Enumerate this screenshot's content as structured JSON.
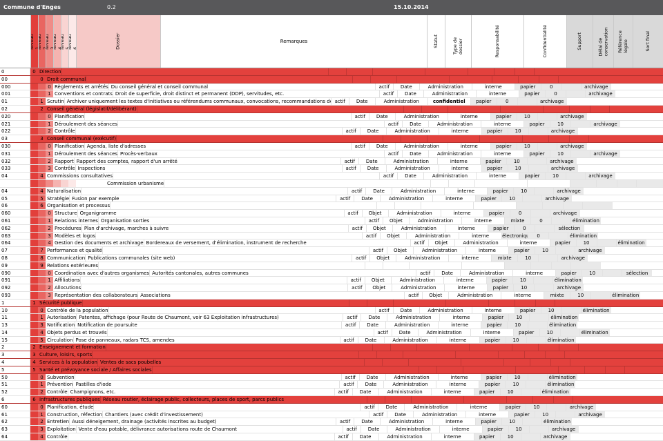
{
  "titlebar": {
    "title": "Commune d'Enges",
    "version": "0.2",
    "date": "15.10.2014"
  },
  "table": {
    "headers": {
      "niveaux": [
        "Niveau 1",
        "Niveau 2",
        "Niveau 3",
        "Niveau 4",
        "Niveau 5",
        "Niveau 6"
      ],
      "dossier": "Dossier",
      "remarques": "Remarques",
      "statut": "Statut",
      "type": "Type de dossier",
      "resp": "Responsabilité",
      "conf": "Confidentialité",
      "support": "Support",
      "delai": "Délai de conservation",
      "ref": "Référence légale",
      "sort": "Sort final"
    },
    "colors": {
      "accent_red": "#e3413d",
      "niveau_gradient": [
        "#e23f3b",
        "#e96561",
        "#ef8c88",
        "#f5b3b0",
        "#f9d4d2",
        "#fce9e8"
      ],
      "header_gray": "#d9d9d9",
      "data_gray": "#e9e9e9",
      "titlebar_gray": "#58585a"
    },
    "rows": [
      {
        "code": "0",
        "kind": "s1",
        "num": "0",
        "label": "Direction",
        "remark": ""
      },
      {
        "code": "00",
        "kind": "s2",
        "num": "0",
        "label": "Droit communal",
        "remark": ""
      },
      {
        "code": "000",
        "kind": "d3",
        "num": "0",
        "label": "Règlements et arrêtés",
        "remark": "Du conseil général et conseil communal",
        "values": {
          "statut": "actif",
          "type": "Date",
          "resp": "Administration",
          "conf": "interne",
          "support": "papier",
          "delai": "0",
          "ref": "",
          "sort": "archivage"
        }
      },
      {
        "code": "001",
        "kind": "d3",
        "num": "1",
        "label": "Conventions et contrats",
        "remark": "Droit de superficie, droit distinct et permanent (DDP), servitudes, etc.",
        "values": {
          "statut": "actif",
          "type": "Date",
          "resp": "Administration",
          "conf": "interne",
          "support": "papier",
          "delai": "0",
          "ref": "",
          "sort": "archivage"
        }
      },
      {
        "code": "01",
        "kind": "d2",
        "num": "1",
        "label": "Scrutin",
        "remark": "Archiver uniquement les textes d'initiatives ou référendums communaux, convocations, recommandations de vote, valida",
        "values": {
          "statut": "actif",
          "type": "Date",
          "resp": "Administration",
          "conf": "confidentiel",
          "support": "papier",
          "delai": "0",
          "ref": "",
          "sort": "archivage"
        }
      },
      {
        "code": "02",
        "kind": "s2",
        "num": "2",
        "label": "Conseil général (législatif/délibérant)",
        "remark": ""
      },
      {
        "code": "020",
        "kind": "d3",
        "num": "0",
        "label": "Planification",
        "remark": "",
        "values": {
          "statut": "actif",
          "type": "Date",
          "resp": "Administration",
          "conf": "interne",
          "support": "papier",
          "delai": "10",
          "ref": "",
          "sort": "archivage"
        }
      },
      {
        "code": "021",
        "kind": "d3",
        "num": "1",
        "label": "Déroulement des séances",
        "remark": "",
        "values": {
          "statut": "actif",
          "type": "Date",
          "resp": "Administration",
          "conf": "interne",
          "support": "papier",
          "delai": "10",
          "ref": "",
          "sort": "archivage"
        }
      },
      {
        "code": "022",
        "kind": "d3",
        "num": "2",
        "label": "Contrôle",
        "remark": "",
        "values": {
          "statut": "actif",
          "type": "Date",
          "resp": "Administration",
          "conf": "interne",
          "support": "papier",
          "delai": "10",
          "ref": "",
          "sort": "archivage"
        }
      },
      {
        "code": "03",
        "kind": "s2",
        "num": "3",
        "label": "Conseil communal (exécutif)",
        "remark": ""
      },
      {
        "code": "030",
        "kind": "d3",
        "num": "0",
        "label": "Planification",
        "remark": "Agenda, liste d'adresses",
        "values": {
          "statut": "actif",
          "type": "Date",
          "resp": "Administration",
          "conf": "interne",
          "support": "papier",
          "delai": "10",
          "ref": "",
          "sort": "archivage"
        }
      },
      {
        "code": "031",
        "kind": "d3",
        "num": "1",
        "label": "Déroulement des séances",
        "remark": "Procès-verbaux",
        "values": {
          "statut": "actif",
          "type": "Date",
          "resp": "Administration",
          "conf": "interne",
          "support": "papier",
          "delai": "10",
          "ref": "",
          "sort": "archivage"
        }
      },
      {
        "code": "032",
        "kind": "d3",
        "num": "2",
        "label": "Rapport",
        "remark": "Rapport des comptes, rapport d'un arrêté",
        "values": {
          "statut": "actif",
          "type": "Date",
          "resp": "Administration",
          "conf": "interne",
          "support": "papier",
          "delai": "10",
          "ref": "",
          "sort": "archivage"
        }
      },
      {
        "code": "033",
        "kind": "d3",
        "num": "3",
        "label": "Contrôle",
        "remark": "Inspections",
        "values": {
          "statut": "actif",
          "type": "Date",
          "resp": "Administration",
          "conf": "interne",
          "support": "papier",
          "delai": "10",
          "ref": "",
          "sort": "archivage"
        }
      },
      {
        "code": "04",
        "kind": "d2",
        "num": "4",
        "label": "Commissions consultatives",
        "remark": "",
        "values": {
          "statut": "actif",
          "type": "Date",
          "resp": "Administration",
          "conf": "interne",
          "support": "papier",
          "delai": "10",
          "ref": "",
          "sort": "archivage"
        }
      },
      {
        "code": "",
        "kind": "ex",
        "num": null,
        "label": "Commission urbanisme",
        "remark": ""
      },
      {
        "code": "04",
        "kind": "d2",
        "num": "4",
        "label": "Naturalisation",
        "remark": "",
        "values": {
          "statut": "actif",
          "type": "Date",
          "resp": "Administration",
          "conf": "interne",
          "support": "papier",
          "delai": "10",
          "ref": "",
          "sort": "archivage"
        }
      },
      {
        "code": "05",
        "kind": "d2",
        "num": "5",
        "label": "Stratégie",
        "remark": "Fusion par exemple",
        "values": {
          "statut": "actif",
          "type": "Date",
          "resp": "Administration",
          "conf": "interne",
          "support": "papier",
          "delai": "10",
          "ref": "",
          "sort": "archivage"
        }
      },
      {
        "code": "06",
        "kind": "g2",
        "num": "6",
        "label": "Organisation et processus",
        "remark": ""
      },
      {
        "code": "060",
        "kind": "d3",
        "num": "0",
        "label": "Structure",
        "remark": "Organigramme",
        "values": {
          "statut": "actif",
          "type": "Objet",
          "resp": "Administration",
          "conf": "interne",
          "support": "papier",
          "delai": "0",
          "ref": "",
          "sort": "archivage"
        }
      },
      {
        "code": "061",
        "kind": "d3",
        "num": "1",
        "label": "Relations internes",
        "remark": "Organisation sorties",
        "values": {
          "statut": "actif",
          "type": "Objet",
          "resp": "Administration",
          "conf": "interne",
          "support": "mixte",
          "delai": "0",
          "ref": "",
          "sort": "élimination"
        }
      },
      {
        "code": "062",
        "kind": "d3",
        "num": "2",
        "label": "Procédures",
        "remark": "Plan d'archivage, marches à suivre",
        "values": {
          "statut": "actif",
          "type": "Objet",
          "resp": "Administration",
          "conf": "interne",
          "support": "papier",
          "delai": "0",
          "ref": "",
          "sort": "sélection"
        }
      },
      {
        "code": "063",
        "kind": "d3",
        "num": "3",
        "label": "Modèles et logos",
        "remark": "",
        "values": {
          "statut": "actif",
          "type": "Objet",
          "resp": "Administration",
          "conf": "interne",
          "support": "électronique",
          "delai": "0",
          "ref": "",
          "sort": "élimination"
        }
      },
      {
        "code": "064",
        "kind": "d3",
        "num": "4",
        "label": "Gestion des documents et archivage",
        "remark": "Bordereaux de versement, d'élimination, instrument de recherche",
        "values": {
          "statut": "actif",
          "type": "Objet",
          "resp": "Administration",
          "conf": "interne",
          "support": "papier",
          "delai": "10",
          "ref": "",
          "sort": "élimination"
        }
      },
      {
        "code": "07",
        "kind": "d2",
        "num": "7",
        "label": "Performance et qualité",
        "remark": "",
        "values": {
          "statut": "actif",
          "type": "Objet",
          "resp": "Administration",
          "conf": "interne",
          "support": "papier",
          "delai": "10",
          "ref": "",
          "sort": "archivage"
        }
      },
      {
        "code": "08",
        "kind": "d2",
        "num": "8",
        "label": "Communication",
        "remark": "Publications communales (site web)",
        "values": {
          "statut": "actif",
          "type": "Objet",
          "resp": "Administration",
          "conf": "interne",
          "support": "mixte",
          "delai": "10",
          "ref": "",
          "sort": "archivage"
        }
      },
      {
        "code": "09",
        "kind": "g2",
        "num": "9",
        "label": "Relations extérieures",
        "remark": ""
      },
      {
        "code": "090",
        "kind": "d3",
        "num": "0",
        "label": "Coordination avec d'autres organismes",
        "remark": "Autorités cantonales, autres communes",
        "values": {
          "statut": "actif",
          "type": "Date",
          "resp": "Administration",
          "conf": "interne",
          "support": "papier",
          "delai": "10",
          "ref": "",
          "sort": "sélection"
        }
      },
      {
        "code": "091",
        "kind": "d3",
        "num": "1",
        "label": "Affiliations",
        "remark": "",
        "values": {
          "statut": "actif",
          "type": "Objet",
          "resp": "Administration",
          "conf": "interne",
          "support": "papier",
          "delai": "10",
          "ref": "",
          "sort": "élimination"
        }
      },
      {
        "code": "092",
        "kind": "d3",
        "num": "2",
        "label": "Allocutions",
        "remark": "",
        "values": {
          "statut": "actif",
          "type": "Objet",
          "resp": "Administration",
          "conf": "interne",
          "support": "papier",
          "delai": "10",
          "ref": "",
          "sort": "archivage"
        }
      },
      {
        "code": "093",
        "kind": "d3",
        "num": "3",
        "label": "Représentation des collaborateurs",
        "remark": "Associations",
        "values": {
          "statut": "actif",
          "type": "Objet",
          "resp": "Administration",
          "conf": "interne",
          "support": "mixte",
          "delai": "10",
          "ref": "",
          "sort": "élimination"
        }
      },
      {
        "code": "1",
        "kind": "s1",
        "num": "1",
        "label": "Sécurité publique",
        "remark": ""
      },
      {
        "code": "10",
        "kind": "d2",
        "num": "0",
        "label": "Contrôle de la population",
        "remark": "",
        "values": {
          "statut": "actif",
          "type": "Date",
          "resp": "Administration",
          "conf": "interne",
          "support": "papier",
          "delai": "10",
          "ref": "",
          "sort": "élimination"
        }
      },
      {
        "code": "11",
        "kind": "d2",
        "num": "1",
        "label": "Autorisation",
        "remark": "Patentes, affichage (pour Route de Chaumont, voir 63 Exploitation infrastructures)",
        "values": {
          "statut": "actif",
          "type": "Date",
          "resp": "Administration",
          "conf": "interne",
          "support": "papier",
          "delai": "10",
          "ref": "",
          "sort": "élimination"
        }
      },
      {
        "code": "13",
        "kind": "d2",
        "num": "3",
        "label": "Notification",
        "remark": "Notification de poursuite",
        "values": {
          "statut": "actif",
          "type": "Date",
          "resp": "Administration",
          "conf": "interne",
          "support": "papier",
          "delai": "10",
          "ref": "",
          "sort": "élimination"
        }
      },
      {
        "code": "14",
        "kind": "d2",
        "num": "4",
        "label": "Objets perdus et trouvés",
        "remark": "",
        "values": {
          "statut": "actif",
          "type": "Date",
          "resp": "Administration",
          "conf": "interne",
          "support": "papier",
          "delai": "10",
          "ref": "",
          "sort": "élimination"
        }
      },
      {
        "code": "15",
        "kind": "d2",
        "num": "5",
        "label": "Circulation",
        "remark": "Pose de panneaux, radars TCS, amendes",
        "values": {
          "statut": "actif",
          "type": "Date",
          "resp": "Administration",
          "conf": "interne",
          "support": "papier",
          "delai": "10",
          "ref": "",
          "sort": "élimination"
        }
      },
      {
        "code": "2",
        "kind": "s1",
        "num": "2",
        "label": "Enseignement et formation",
        "remark": ""
      },
      {
        "code": "3",
        "kind": "s1",
        "num": "3",
        "label": "Culture, loisirs, sports",
        "remark": ""
      },
      {
        "code": "4",
        "kind": "s1",
        "num": "4",
        "label": "Services à la population",
        "remark": "Ventes de sacs poubelles"
      },
      {
        "code": "5",
        "kind": "s1",
        "num": "5",
        "label": "Santé et prévoyance sociale / Affaires sociales",
        "remark": ""
      },
      {
        "code": "50",
        "kind": "d2",
        "num": "0",
        "label": "Subvention",
        "remark": "",
        "values": {
          "statut": "actif",
          "type": "Date",
          "resp": "Administration",
          "conf": "interne",
          "support": "papier",
          "delai": "10",
          "ref": "",
          "sort": "élimination"
        }
      },
      {
        "code": "51",
        "kind": "d2",
        "num": "1",
        "label": "Prévention",
        "remark": "Pastilles d'iode",
        "values": {
          "statut": "actif",
          "type": "Date",
          "resp": "Administration",
          "conf": "interne",
          "support": "papier",
          "delai": "10",
          "ref": "",
          "sort": "élimination"
        }
      },
      {
        "code": "52",
        "kind": "d2",
        "num": "2",
        "label": "Contrôle",
        "remark": "Champignons, etc.",
        "values": {
          "statut": "actif",
          "type": "Date",
          "resp": "Administration",
          "conf": "interne",
          "support": "papier",
          "delai": "10",
          "ref": "",
          "sort": "élimination"
        }
      },
      {
        "code": "6",
        "kind": "s1",
        "num": "6",
        "label": "Infrastructures publiques",
        "remark": "Réseau routier, éclairage public, collecteurs, places de sport, parcs publics"
      },
      {
        "code": "60",
        "kind": "d2",
        "num": "0",
        "label": "Planification, étude",
        "remark": "",
        "values": {
          "statut": "actif",
          "type": "Date",
          "resp": "Administration",
          "conf": "interne",
          "support": "papier",
          "delai": "10",
          "ref": "",
          "sort": "archivage"
        }
      },
      {
        "code": "61",
        "kind": "d2",
        "num": "1",
        "label": "Construction, réfection",
        "remark": "Chantiers (avec crédit d'investissement)",
        "values": {
          "statut": "actif",
          "type": "Date",
          "resp": "Administration",
          "conf": "interne",
          "support": "papier",
          "delai": "10",
          "ref": "",
          "sort": "archivage"
        }
      },
      {
        "code": "62",
        "kind": "d2",
        "num": "2",
        "label": "Entretien",
        "remark": "Aussi déneigement, drainage (activités inscrites au budget)",
        "values": {
          "statut": "actif",
          "type": "Date",
          "resp": "Administration",
          "conf": "interne",
          "support": "papier",
          "delai": "10",
          "ref": "",
          "sort": "élimination"
        }
      },
      {
        "code": "63",
        "kind": "d2",
        "num": "3",
        "label": "Exploitation",
        "remark": "Vente d'eau potable, délivrance autorisations route de Chaumont",
        "values": {
          "statut": "actif",
          "type": "Date",
          "resp": "Administration",
          "conf": "interne",
          "support": "papier",
          "delai": "10",
          "ref": "",
          "sort": "archivage"
        }
      },
      {
        "code": "64",
        "kind": "d2",
        "num": "4",
        "label": "Contrôle",
        "remark": "",
        "values": {
          "statut": "actif",
          "type": "Date",
          "resp": "Administration",
          "conf": "interne",
          "support": "papier",
          "delai": "10",
          "ref": "",
          "sort": "archivage"
        }
      }
    ]
  }
}
